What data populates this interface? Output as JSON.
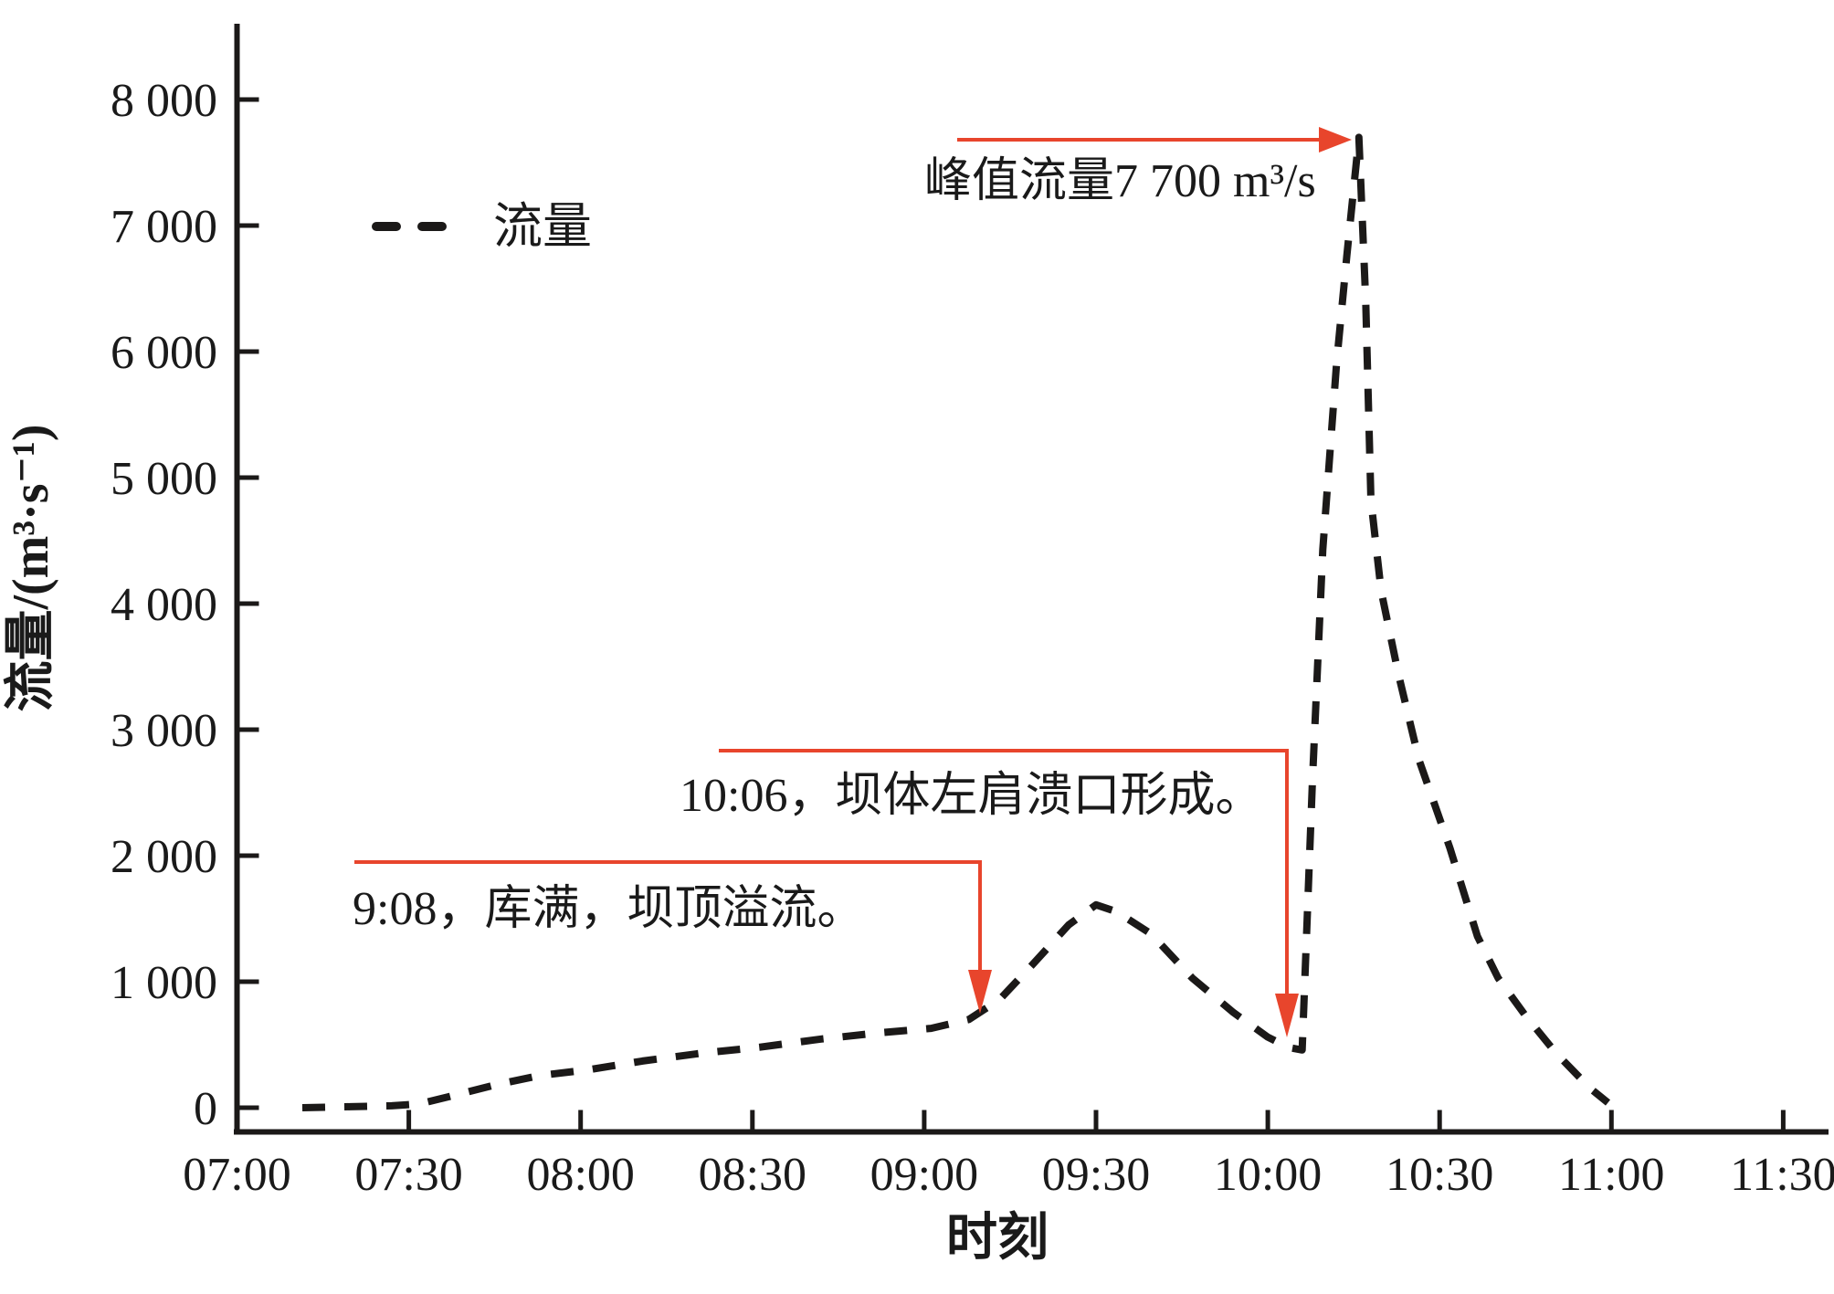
{
  "colors": {
    "curve": "#1b1918",
    "annotation_red": "#e8452c",
    "text": "#1a1a1a",
    "background": "#ffffff"
  },
  "chart_data": {
    "type": "line",
    "title": "",
    "xlabel": "时刻",
    "ylabel": "流量/(m³·s⁻¹)",
    "x_tick_labels": [
      "07:00",
      "07:30",
      "08:00",
      "08:30",
      "09:00",
      "09:30",
      "10:00",
      "10:30",
      "11:00",
      "11:30"
    ],
    "x_tick_hours": [
      7,
      7.5,
      8,
      8.5,
      9,
      9.5,
      10,
      10.5,
      11,
      11.5
    ],
    "y_tick_labels": [
      "0",
      "1 000",
      "2 000",
      "3 000",
      "4 000",
      "5 000",
      "6 000",
      "7 000",
      "8 000"
    ],
    "y_tick_values": [
      0,
      1000,
      2000,
      3000,
      4000,
      5000,
      6000,
      7000,
      8000
    ],
    "xlim_hours": [
      7,
      11.65
    ],
    "ylim": [
      0,
      8600
    ],
    "grid": false,
    "legend": {
      "label": "流量",
      "style": "dashed",
      "position": "upper-left-inside"
    },
    "series": [
      {
        "name": "流量",
        "style": "dashed",
        "points_time_flow": [
          [
            7.19,
            0
          ],
          [
            7.33,
            8
          ],
          [
            7.45,
            15
          ],
          [
            7.53,
            30
          ],
          [
            7.62,
            90
          ],
          [
            7.75,
            180
          ],
          [
            7.88,
            255
          ],
          [
            8.02,
            300
          ],
          [
            8.18,
            370
          ],
          [
            8.35,
            432
          ],
          [
            8.52,
            480
          ],
          [
            8.7,
            545
          ],
          [
            8.88,
            597
          ],
          [
            9.02,
            630
          ],
          [
            9.13,
            700
          ],
          [
            9.22,
            860
          ],
          [
            9.32,
            1150
          ],
          [
            9.42,
            1450
          ],
          [
            9.5,
            1610
          ],
          [
            9.56,
            1555
          ],
          [
            9.66,
            1380
          ],
          [
            9.78,
            1030
          ],
          [
            9.9,
            755
          ],
          [
            10.0,
            560
          ],
          [
            10.06,
            478
          ],
          [
            10.1,
            458
          ],
          [
            10.13,
            2600
          ],
          [
            10.16,
            4430
          ],
          [
            10.2,
            5900
          ],
          [
            10.23,
            6760
          ],
          [
            10.265,
            7700
          ],
          [
            10.285,
            6400
          ],
          [
            10.3,
            4820
          ],
          [
            10.33,
            4100
          ],
          [
            10.38,
            3440
          ],
          [
            10.44,
            2760
          ],
          [
            10.53,
            2060
          ],
          [
            10.61,
            1360
          ],
          [
            10.67,
            1030
          ],
          [
            10.75,
            730
          ],
          [
            10.84,
            430
          ],
          [
            10.94,
            150
          ],
          [
            10.99,
            40
          ]
        ]
      }
    ],
    "annotations": [
      {
        "id": "peak-flow",
        "text": "峰值流量7 700 m³/s",
        "arrow": "right",
        "value_m3s": 7700
      },
      {
        "id": "breach",
        "text": "10:06，坝体左肩溃口形成。",
        "arrow": "down",
        "time": "10:06"
      },
      {
        "id": "overflow",
        "text": "9:08，库满，坝顶溢流。",
        "arrow": "down",
        "time": "9:08"
      }
    ]
  }
}
